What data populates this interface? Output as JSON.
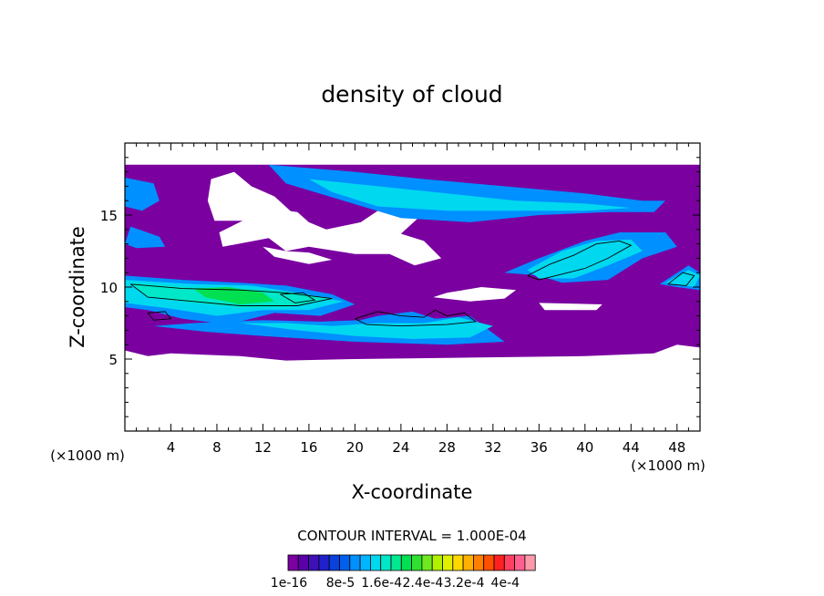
{
  "chart_data": {
    "type": "heatmap",
    "title": "density of cloud",
    "xlabel": "X-coordinate",
    "ylabel": "Z-coordinate",
    "x_unit_left": "(×1000 m)",
    "x_unit_right": "(×1000 m)",
    "xlim": [
      0,
      50
    ],
    "ylim": [
      0,
      20
    ],
    "x_ticks": [
      4,
      8,
      12,
      16,
      20,
      24,
      28,
      32,
      36,
      40,
      44,
      48
    ],
    "x_tick_labels": [
      "4",
      "8",
      "12",
      "16",
      "20",
      "24",
      "28",
      "32",
      "36",
      "40",
      "44",
      "48"
    ],
    "y_ticks": [
      5,
      10,
      15
    ],
    "y_tick_labels": [
      "5",
      "10",
      "15"
    ],
    "contour_interval_text": "CONTOUR INTERVAL = 1.000E-04",
    "colorbar": {
      "levels": 24,
      "label_positions": [
        0,
        5,
        9,
        13,
        17,
        21
      ],
      "labels": [
        "1e-16",
        "8e-5",
        "1.6e-4",
        "2.4e-4",
        "3.2e-4",
        "4e-4"
      ],
      "colors": [
        "#7a00a0",
        "#5a00a8",
        "#3e10b8",
        "#2020cc",
        "#0a40dc",
        "#0060ec",
        "#0090ff",
        "#00b4ff",
        "#00d8f0",
        "#00e8c8",
        "#00e890",
        "#00e050",
        "#30e030",
        "#70e820",
        "#b0f000",
        "#e0f000",
        "#ffd800",
        "#ffb000",
        "#ff8000",
        "#ff5000",
        "#ff2020",
        "#ff4060",
        "#ff6090",
        "#ff9aa8"
      ]
    },
    "regions": [
      {
        "level": 0,
        "polygons": [
          [
            [
              0,
              18.5
            ],
            [
              50,
              18.5
            ],
            [
              50,
              5.8
            ],
            [
              48,
              6.0
            ],
            [
              46,
              5.4
            ],
            [
              40,
              5.2
            ],
            [
              30,
              5.1
            ],
            [
              20,
              5.0
            ],
            [
              14,
              4.9
            ],
            [
              10,
              5.2
            ],
            [
              4,
              5.4
            ],
            [
              2,
              5.2
            ],
            [
              0,
              5.6
            ]
          ]
        ]
      },
      {
        "level": -1,
        "polygons": [
          [
            [
              7.5,
              17.5
            ],
            [
              9.5,
              18.0
            ],
            [
              11,
              17.0
            ],
            [
              13,
              16.3
            ],
            [
              14.5,
              15.2
            ],
            [
              12.5,
              14.6
            ],
            [
              7.8,
              14.6
            ],
            [
              7.2,
              16.0
            ]
          ],
          [
            [
              12.5,
              15.5
            ],
            [
              15,
              15.2
            ],
            [
              16,
              14.5
            ],
            [
              17.5,
              14.0
            ],
            [
              20.5,
              14.5
            ],
            [
              22,
              15.3
            ],
            [
              24,
              15.5
            ],
            [
              25.5,
              14.8
            ],
            [
              24,
              13.7
            ],
            [
              26,
              13.2
            ],
            [
              27.5,
              12.0
            ],
            [
              25.2,
              11.5
            ],
            [
              23,
              12.3
            ],
            [
              20,
              12.3
            ],
            [
              16,
              12.8
            ],
            [
              14,
              12.5
            ],
            [
              12.5,
              13.4
            ],
            [
              8.5,
              12.8
            ],
            [
              8.2,
              13.8
            ]
          ],
          [
            [
              12,
              12.8
            ],
            [
              14,
              12.5
            ],
            [
              16,
              12.4
            ],
            [
              18,
              11.9
            ],
            [
              16,
              11.6
            ],
            [
              13,
              12.1
            ]
          ],
          [
            [
              26.8,
              9.3
            ],
            [
              30,
              9.0
            ],
            [
              33,
              9.2
            ],
            [
              34,
              9.8
            ],
            [
              31,
              10.0
            ],
            [
              28,
              9.6
            ]
          ],
          [
            [
              36,
              8.9
            ],
            [
              41.5,
              8.8
            ],
            [
              41,
              8.4
            ],
            [
              36.5,
              8.4
            ]
          ]
        ]
      },
      {
        "level": 6,
        "polygons": [
          [
            [
              12.5,
              18.5
            ],
            [
              20,
              18.0
            ],
            [
              26,
              17.5
            ],
            [
              33,
              17.0
            ],
            [
              40,
              16.5
            ],
            [
              45,
              16.0
            ],
            [
              47,
              16.0
            ],
            [
              46,
              15.2
            ],
            [
              42,
              15.2
            ],
            [
              36,
              15.0
            ],
            [
              30,
              14.5
            ],
            [
              24,
              14.8
            ],
            [
              19,
              16.0
            ],
            [
              14,
              17.2
            ]
          ],
          [
            [
              0,
              17.6
            ],
            [
              2.5,
              17.2
            ],
            [
              3.0,
              16.0
            ],
            [
              1.5,
              15.3
            ],
            [
              0,
              15.6
            ]
          ],
          [
            [
              0.5,
              14.2
            ],
            [
              3,
              13.5
            ],
            [
              3.5,
              12.8
            ],
            [
              1.0,
              12.7
            ],
            [
              0,
              13.0
            ]
          ],
          [
            [
              33,
              11.0
            ],
            [
              36,
              12.0
            ],
            [
              40,
              13.2
            ],
            [
              43,
              13.8
            ],
            [
              47,
              13.8
            ],
            [
              48,
              12.8
            ],
            [
              45,
              12.0
            ],
            [
              42,
              10.5
            ],
            [
              38,
              10.3
            ],
            [
              36,
              10.8
            ]
          ],
          [
            [
              46.5,
              10.2
            ],
            [
              49,
              11.5
            ],
            [
              50,
              11.0
            ],
            [
              50,
              9.8
            ],
            [
              48,
              10.0
            ]
          ],
          [
            [
              0,
              10.8
            ],
            [
              5,
              10.5
            ],
            [
              10,
              10.3
            ],
            [
              14,
              10.1
            ],
            [
              18,
              9.5
            ],
            [
              20,
              8.8
            ],
            [
              17,
              8.0
            ],
            [
              13,
              8.2
            ],
            [
              9,
              7.4
            ],
            [
              5,
              7.8
            ],
            [
              2,
              8.4
            ],
            [
              0,
              8.6
            ]
          ],
          [
            [
              2.5,
              7.3
            ],
            [
              7,
              6.9
            ],
            [
              12,
              6.6
            ],
            [
              16,
              6.4
            ],
            [
              20,
              6.2
            ],
            [
              24,
              6.1
            ],
            [
              28,
              6.0
            ],
            [
              33,
              6.2
            ],
            [
              30,
              8.0
            ],
            [
              27,
              7.8
            ],
            [
              25,
              8.3
            ],
            [
              22,
              8.0
            ],
            [
              20.5,
              7.7
            ],
            [
              17,
              7.6
            ],
            [
              12,
              7.7
            ],
            [
              6,
              7.5
            ]
          ]
        ]
      },
      {
        "level": 8,
        "polygons": [
          [
            [
              16,
              17.5
            ],
            [
              22,
              17.0
            ],
            [
              28,
              16.5
            ],
            [
              34,
              16.0
            ],
            [
              40,
              15.8
            ],
            [
              44,
              15.5
            ],
            [
              40,
              15.3
            ],
            [
              34,
              15.3
            ],
            [
              28,
              15.3
            ],
            [
              22,
              15.6
            ],
            [
              18,
              16.6
            ]
          ],
          [
            [
              35,
              11.2
            ],
            [
              38,
              12.5
            ],
            [
              41,
              13.2
            ],
            [
              44,
              13.3
            ],
            [
              45,
              12.5
            ],
            [
              42,
              11.5
            ],
            [
              39,
              10.6
            ],
            [
              36,
              10.6
            ]
          ],
          [
            [
              0,
              10.5
            ],
            [
              6,
              10.2
            ],
            [
              11,
              10.1
            ],
            [
              15,
              9.6
            ],
            [
              19,
              9.0
            ],
            [
              16,
              8.4
            ],
            [
              12,
              8.4
            ],
            [
              8,
              8.0
            ],
            [
              4,
              8.5
            ],
            [
              0,
              8.9
            ]
          ],
          [
            [
              10,
              7.5
            ],
            [
              15,
              7.0
            ],
            [
              20,
              6.6
            ],
            [
              25,
              6.4
            ],
            [
              30,
              6.5
            ],
            [
              32,
              7.3
            ],
            [
              29,
              7.9
            ],
            [
              26,
              7.5
            ],
            [
              22,
              7.5
            ],
            [
              18,
              7.3
            ],
            [
              14,
              7.5
            ]
          ],
          [
            [
              47,
              10.3
            ],
            [
              49,
              11.2
            ],
            [
              50,
              10.8
            ],
            [
              49.5,
              10.0
            ]
          ]
        ]
      },
      {
        "level": 9,
        "polygons": [
          [
            [
              0.5,
              10.3
            ],
            [
              5,
              10.0
            ],
            [
              10,
              9.9
            ],
            [
              14,
              9.7
            ],
            [
              18,
              9.2
            ],
            [
              14,
              8.6
            ],
            [
              10,
              8.6
            ],
            [
              6,
              8.9
            ],
            [
              2,
              9.3
            ]
          ]
        ]
      },
      {
        "level": 11,
        "polygons": [
          [
            [
              6,
              9.9
            ],
            [
              9,
              10.0
            ],
            [
              12,
              9.6
            ],
            [
              13,
              9.0
            ],
            [
              10,
              8.8
            ],
            [
              7,
              9.3
            ]
          ]
        ]
      }
    ],
    "contour_lines": [
      [
        [
          0.5,
          10.2
        ],
        [
          5,
          9.9
        ],
        [
          10,
          9.8
        ],
        [
          14,
          9.6
        ],
        [
          18,
          9.2
        ],
        [
          15,
          8.7
        ],
        [
          10,
          8.7
        ],
        [
          6,
          9.0
        ],
        [
          2,
          9.3
        ],
        [
          0.5,
          10.2
        ]
      ],
      [
        [
          13.5,
          9.5
        ],
        [
          15.5,
          9.6
        ],
        [
          16.5,
          9.1
        ],
        [
          14.8,
          8.9
        ],
        [
          13.5,
          9.5
        ]
      ],
      [
        [
          20,
          7.8
        ],
        [
          22,
          8.3
        ],
        [
          24,
          8.0
        ],
        [
          26,
          7.9
        ],
        [
          27,
          8.4
        ],
        [
          28,
          8.0
        ],
        [
          29.5,
          8.2
        ],
        [
          30.5,
          7.6
        ],
        [
          28,
          7.4
        ],
        [
          24,
          7.3
        ],
        [
          21,
          7.4
        ],
        [
          20,
          7.8
        ]
      ],
      [
        [
          35,
          10.8
        ],
        [
          37,
          11.6
        ],
        [
          39,
          12.2
        ],
        [
          41,
          13.0
        ],
        [
          43,
          13.2
        ],
        [
          44,
          12.9
        ],
        [
          42,
          12.0
        ],
        [
          40,
          11.3
        ],
        [
          38,
          10.9
        ],
        [
          36,
          10.5
        ],
        [
          35,
          10.8
        ]
      ],
      [
        [
          47.2,
          10.2
        ],
        [
          48.5,
          11.0
        ],
        [
          49.5,
          10.8
        ],
        [
          48.8,
          10.1
        ],
        [
          47.2,
          10.2
        ]
      ],
      [
        [
          2.0,
          8.2
        ],
        [
          3.5,
          8.3
        ],
        [
          4.0,
          7.8
        ],
        [
          2.5,
          7.7
        ],
        [
          2.0,
          8.2
        ]
      ]
    ]
  }
}
